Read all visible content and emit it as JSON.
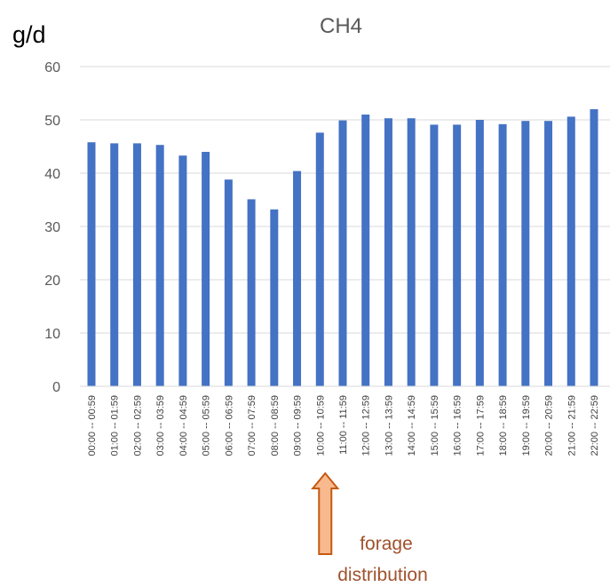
{
  "chart_data": {
    "type": "bar",
    "title": "CH4",
    "ylabel": "g/d",
    "xlabel": "",
    "ylim": [
      0,
      60
    ],
    "yticks": [
      0,
      10,
      20,
      30,
      40,
      50,
      60
    ],
    "grid": true,
    "legend": "none",
    "bar_color": "#4472c4",
    "categories": [
      "00:00 -- 00:59",
      "01:00 -- 01:59",
      "02:00 -- 02:59",
      "03:00 -- 03:59",
      "04:00 -- 04:59",
      "05:00 -- 05:59",
      "06:00 -- 06:59",
      "07:00 -- 07:59",
      "08:00 -- 08:59",
      "09:00 -- 09:59",
      "10:00 -- 10:59",
      "11:00 -- 11:59",
      "12:00 -- 12:59",
      "13:00 -- 13:59",
      "14:00 -- 14:59",
      "15:00 -- 15:59",
      "16:00 -- 16:59",
      "17:00 -- 17:59",
      "18:00 -- 18:59",
      "19:00 -- 19:59",
      "20:00 -- 20:59",
      "21:00 -- 21:59",
      "22:00 -- 22:59"
    ],
    "values": [
      45.8,
      45.6,
      45.6,
      45.3,
      43.3,
      44.0,
      38.8,
      35.1,
      33.2,
      40.4,
      47.6,
      49.9,
      51.0,
      50.3,
      50.3,
      49.1,
      49.1,
      50.0,
      49.2,
      49.8,
      49.8,
      50.6,
      52.0
    ],
    "annotation": {
      "text_lines": [
        "forage",
        "distribution"
      ],
      "category_index": 10,
      "arrow_fill": "#f8b98f",
      "arrow_stroke": "#c55a11",
      "text_color": "#a0522d"
    }
  }
}
